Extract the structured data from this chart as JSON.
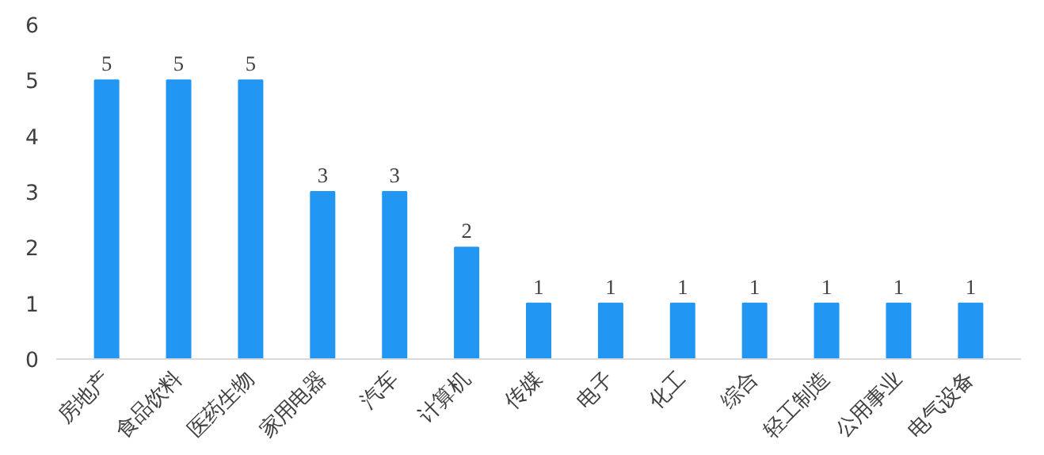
{
  "chart_data": {
    "type": "bar",
    "categories": [
      "房地产",
      "食品饮料",
      "医药生物",
      "家用电器",
      "汽车",
      "计算机",
      "传媒",
      "电子",
      "化工",
      "综合",
      "轻工制造",
      "公用事业",
      "电气设备"
    ],
    "values": [
      5,
      5,
      5,
      3,
      3,
      2,
      1,
      1,
      1,
      1,
      1,
      1,
      1
    ],
    "color": "#2196f3",
    "ylim": [
      0,
      6
    ],
    "yticks": [
      0,
      1,
      2,
      3,
      4,
      5,
      6
    ],
    "data_labels": true,
    "grid": false
  }
}
